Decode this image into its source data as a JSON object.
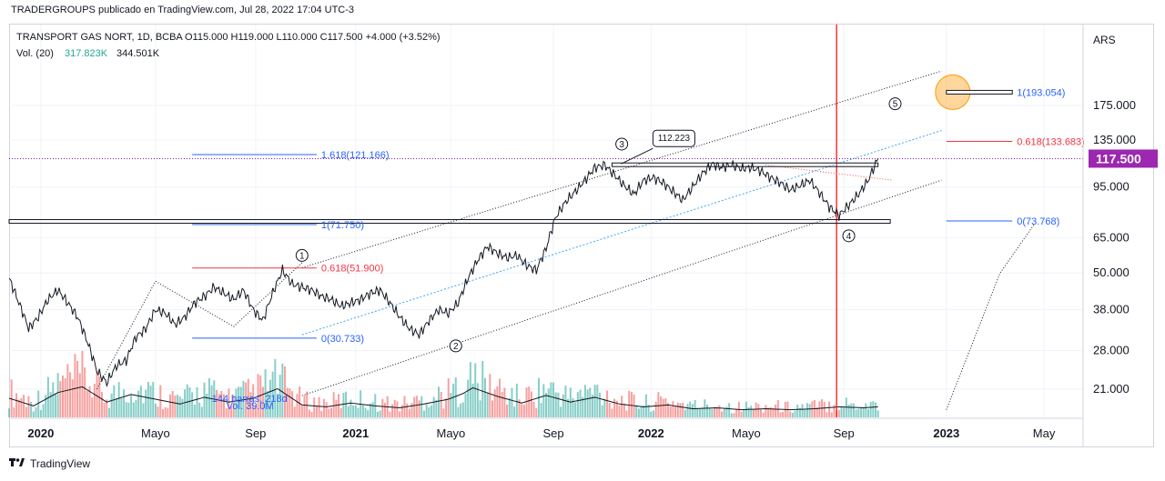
{
  "header": {
    "published": "TRADERGROUPS publicado en TradingView.com, Jul 28, 2022 17:04 UTC-3"
  },
  "legend": {
    "symbol": "TRANSPORT GAS NORT, 1D, BCBA",
    "ohlc": "O115.000  H119.000  L110.000  C117.500  +4.000 (+3.52%)",
    "vol_label": "Vol. (20)",
    "vol_ma": "317.823K",
    "vol_value": "344.501K"
  },
  "footer": {
    "brand": "TradingView"
  },
  "chart_data": {
    "type": "line",
    "title": "TRANSPORT GAS NORT, 1D, BCBA",
    "currency": "ARS",
    "scale": "log",
    "ylim": [
      17,
      320
    ],
    "x_tick_labels": [
      "2020",
      "Mayo",
      "Sep",
      "2021",
      "Mayo",
      "Sep",
      "2022",
      "Mayo",
      "Sep",
      "2023",
      "May"
    ],
    "y_tick_labels": [
      "175.000",
      "135.000",
      "95.000",
      "65.000",
      "50.000",
      "38.000",
      "28.000",
      "21.000"
    ],
    "y_tick_values": [
      175,
      135,
      95,
      65,
      50,
      38,
      28,
      21
    ],
    "last_price": {
      "value": 117.5,
      "label": "117.500"
    },
    "price_series": [
      {
        "t": 0,
        "v": 48
      },
      {
        "t": 4,
        "v": 40
      },
      {
        "t": 8,
        "v": 33
      },
      {
        "t": 12,
        "v": 36
      },
      {
        "t": 16,
        "v": 41
      },
      {
        "t": 20,
        "v": 44
      },
      {
        "t": 24,
        "v": 40
      },
      {
        "t": 28,
        "v": 36
      },
      {
        "t": 32,
        "v": 30
      },
      {
        "t": 36,
        "v": 24
      },
      {
        "t": 40,
        "v": 22
      },
      {
        "t": 44,
        "v": 25
      },
      {
        "t": 48,
        "v": 26
      },
      {
        "t": 52,
        "v": 31
      },
      {
        "t": 56,
        "v": 33
      },
      {
        "t": 60,
        "v": 38
      },
      {
        "t": 64,
        "v": 37
      },
      {
        "t": 68,
        "v": 34
      },
      {
        "t": 72,
        "v": 36
      },
      {
        "t": 76,
        "v": 40
      },
      {
        "t": 80,
        "v": 42
      },
      {
        "t": 84,
        "v": 45
      },
      {
        "t": 88,
        "v": 43
      },
      {
        "t": 92,
        "v": 41
      },
      {
        "t": 96,
        "v": 44
      },
      {
        "t": 100,
        "v": 38
      },
      {
        "t": 104,
        "v": 35
      },
      {
        "t": 108,
        "v": 43
      },
      {
        "t": 112,
        "v": 51
      },
      {
        "t": 116,
        "v": 46
      },
      {
        "t": 120,
        "v": 45
      },
      {
        "t": 124,
        "v": 44
      },
      {
        "t": 128,
        "v": 42
      },
      {
        "t": 132,
        "v": 41
      },
      {
        "t": 136,
        "v": 39
      },
      {
        "t": 140,
        "v": 40
      },
      {
        "t": 144,
        "v": 41
      },
      {
        "t": 148,
        "v": 43
      },
      {
        "t": 152,
        "v": 44
      },
      {
        "t": 156,
        "v": 40
      },
      {
        "t": 160,
        "v": 36
      },
      {
        "t": 164,
        "v": 33
      },
      {
        "t": 168,
        "v": 31.5
      },
      {
        "t": 172,
        "v": 35
      },
      {
        "t": 176,
        "v": 38
      },
      {
        "t": 180,
        "v": 37
      },
      {
        "t": 184,
        "v": 40
      },
      {
        "t": 188,
        "v": 48
      },
      {
        "t": 192,
        "v": 55
      },
      {
        "t": 196,
        "v": 61
      },
      {
        "t": 200,
        "v": 58
      },
      {
        "t": 204,
        "v": 56
      },
      {
        "t": 208,
        "v": 57
      },
      {
        "t": 212,
        "v": 53
      },
      {
        "t": 216,
        "v": 51
      },
      {
        "t": 220,
        "v": 60
      },
      {
        "t": 224,
        "v": 76
      },
      {
        "t": 228,
        "v": 85
      },
      {
        "t": 232,
        "v": 92
      },
      {
        "t": 236,
        "v": 100
      },
      {
        "t": 240,
        "v": 110
      },
      {
        "t": 244,
        "v": 112
      },
      {
        "t": 248,
        "v": 104
      },
      {
        "t": 252,
        "v": 96
      },
      {
        "t": 256,
        "v": 90
      },
      {
        "t": 260,
        "v": 100
      },
      {
        "t": 264,
        "v": 102
      },
      {
        "t": 268,
        "v": 98
      },
      {
        "t": 272,
        "v": 92
      },
      {
        "t": 276,
        "v": 86
      },
      {
        "t": 280,
        "v": 95
      },
      {
        "t": 284,
        "v": 105
      },
      {
        "t": 288,
        "v": 113
      },
      {
        "t": 292,
        "v": 110
      },
      {
        "t": 296,
        "v": 112
      },
      {
        "t": 300,
        "v": 109
      },
      {
        "t": 304,
        "v": 110
      },
      {
        "t": 308,
        "v": 107
      },
      {
        "t": 312,
        "v": 102
      },
      {
        "t": 316,
        "v": 98
      },
      {
        "t": 320,
        "v": 93
      },
      {
        "t": 324,
        "v": 96
      },
      {
        "t": 328,
        "v": 100
      },
      {
        "t": 332,
        "v": 91
      },
      {
        "t": 336,
        "v": 82
      },
      {
        "t": 340,
        "v": 77
      },
      {
        "t": 344,
        "v": 83
      },
      {
        "t": 348,
        "v": 90
      },
      {
        "t": 352,
        "v": 100
      },
      {
        "t": 356,
        "v": 117.5
      }
    ],
    "volume_series": [
      {
        "t": 0,
        "v": 2.0
      },
      {
        "t": 10,
        "v": 1.2
      },
      {
        "t": 20,
        "v": 2.6
      },
      {
        "t": 30,
        "v": 3.2
      },
      {
        "t": 40,
        "v": 1.6
      },
      {
        "t": 50,
        "v": 2.4
      },
      {
        "t": 60,
        "v": 1.9
      },
      {
        "t": 70,
        "v": 1.4
      },
      {
        "t": 80,
        "v": 2.1
      },
      {
        "t": 90,
        "v": 1.6
      },
      {
        "t": 100,
        "v": 2.0
      },
      {
        "t": 110,
        "v": 3.0
      },
      {
        "t": 120,
        "v": 1.3
      },
      {
        "t": 130,
        "v": 1.1
      },
      {
        "t": 140,
        "v": 1.5
      },
      {
        "t": 150,
        "v": 1.2
      },
      {
        "t": 160,
        "v": 1.0
      },
      {
        "t": 170,
        "v": 1.4
      },
      {
        "t": 180,
        "v": 1.9
      },
      {
        "t": 186,
        "v": 2.5
      },
      {
        "t": 190,
        "v": 3.1
      },
      {
        "t": 200,
        "v": 2.2
      },
      {
        "t": 210,
        "v": 1.5
      },
      {
        "t": 220,
        "v": 2.3
      },
      {
        "t": 230,
        "v": 1.6
      },
      {
        "t": 240,
        "v": 2.1
      },
      {
        "t": 250,
        "v": 1.4
      },
      {
        "t": 260,
        "v": 1.1
      },
      {
        "t": 270,
        "v": 1.3
      },
      {
        "t": 280,
        "v": 0.9
      },
      {
        "t": 290,
        "v": 1.0
      },
      {
        "t": 300,
        "v": 0.8
      },
      {
        "t": 310,
        "v": 0.9
      },
      {
        "t": 320,
        "v": 0.8
      },
      {
        "t": 330,
        "v": 0.9
      },
      {
        "t": 340,
        "v": 1.1
      },
      {
        "t": 350,
        "v": 1.0
      },
      {
        "t": 356,
        "v": 1.1
      }
    ],
    "volume_overlay_text": [
      {
        "text": "144 barras, 218d",
        "t": 83,
        "v": 19.6
      },
      {
        "text": "Vol. 39.0M",
        "t": 89,
        "v": 18.6
      }
    ],
    "horizontal_levels": [
      {
        "label": "1.618(121.166)",
        "value": 121.166,
        "t0": 75,
        "t1": 126,
        "color": "#2962ff"
      },
      {
        "label": "1(71.750)",
        "value": 71.75,
        "t0": 75,
        "t1": 126,
        "color": "#2962ff"
      },
      {
        "label": "0.618(51.900)",
        "value": 51.9,
        "t0": 75,
        "t1": 126,
        "color": "#f23645"
      },
      {
        "label": "0(30.733)",
        "value": 30.733,
        "t0": 75,
        "t1": 126,
        "color": "#2962ff"
      },
      {
        "label": "1(193.054)",
        "value": 193.054,
        "t0": 384,
        "t1": 411,
        "color": "#2962ff"
      },
      {
        "label": "0.618(133.683)",
        "value": 133.683,
        "t0": 384,
        "t1": 411,
        "color": "#f23645"
      },
      {
        "label": "0(73.768)",
        "value": 73.768,
        "t0": 384,
        "t1": 411,
        "color": "#2962ff"
      }
    ],
    "resistance_levels": [
      {
        "value": 112.223,
        "t0": 247,
        "t1": 356,
        "label": "112.223"
      },
      {
        "value": 73.5,
        "t0": 0,
        "t1": 361
      }
    ],
    "channel_lines": [
      {
        "t0": 120,
        "v0": 52,
        "t1": 382,
        "v1": 226
      },
      {
        "t0": 120,
        "v0": 20,
        "t1": 382,
        "v1": 100
      }
    ],
    "trend_line": {
      "t0": 120,
      "v0": 31.5,
      "t1": 382,
      "v1": 145
    },
    "wave_labels": [
      {
        "label": "1",
        "t": 120,
        "v": 57
      },
      {
        "label": "2",
        "t": 183,
        "v": 29
      },
      {
        "label": "3",
        "t": 251,
        "v": 131
      },
      {
        "label": "4",
        "t": 344,
        "v": 66
      },
      {
        "label": "5",
        "t": 363,
        "v": 177
      }
    ],
    "vertical_marker": {
      "t": 339
    },
    "projection_path": [
      {
        "t": 384,
        "v": 18
      },
      {
        "t": 406,
        "v": 50
      },
      {
        "t": 420,
        "v": 72
      }
    ],
    "target_circle": {
      "t": 384,
      "v": 193
    }
  }
}
